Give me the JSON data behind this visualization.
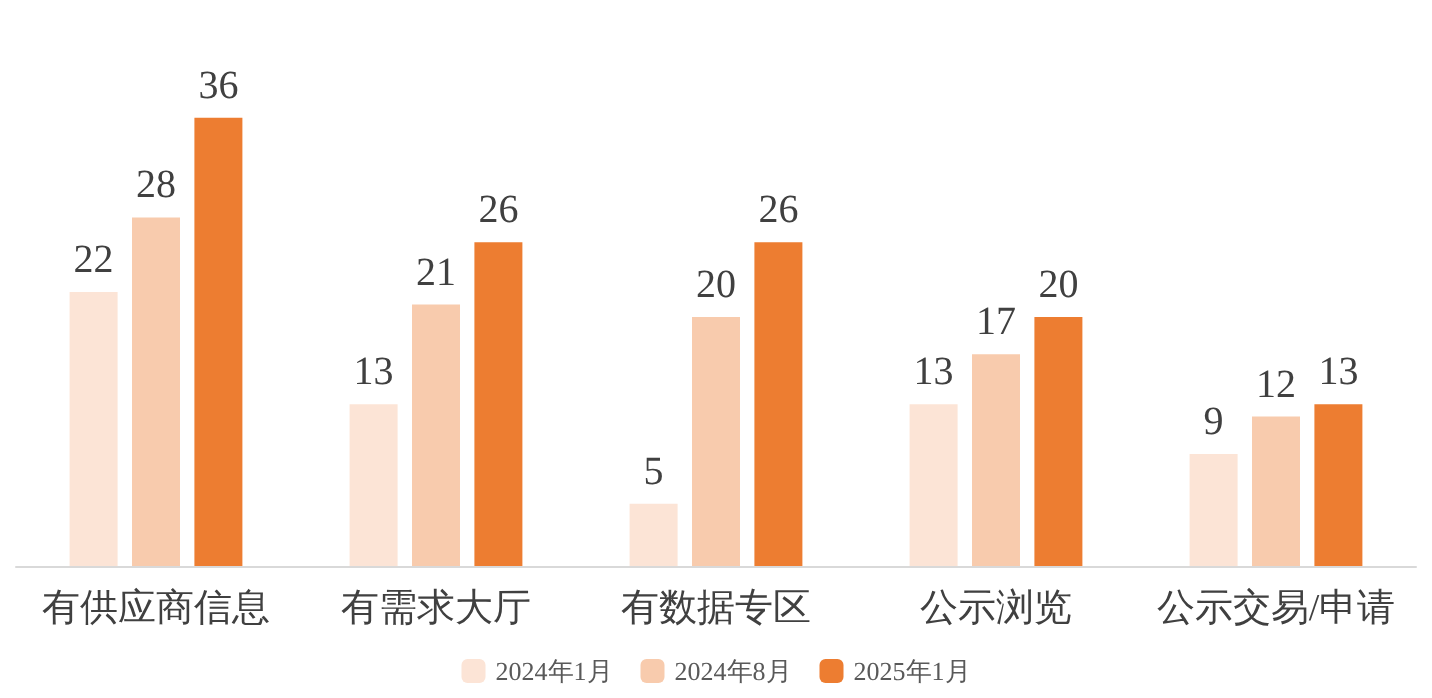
{
  "chart_data": {
    "type": "bar",
    "categories": [
      "有供应商信息",
      "有需求大厅",
      "有数据专区",
      "公示浏览",
      "公示交易/申请"
    ],
    "series": [
      {
        "name": "2024年1月",
        "color": "#fce4d6",
        "values": [
          22,
          13,
          5,
          13,
          9
        ]
      },
      {
        "name": "2024年8月",
        "color": "#f8cbad",
        "values": [
          28,
          21,
          20,
          17,
          12
        ]
      },
      {
        "name": "2025年1月",
        "color": "#ed7d31",
        "values": [
          36,
          26,
          26,
          20,
          13
        ]
      }
    ],
    "data_labels": true,
    "legend": "bottom"
  }
}
